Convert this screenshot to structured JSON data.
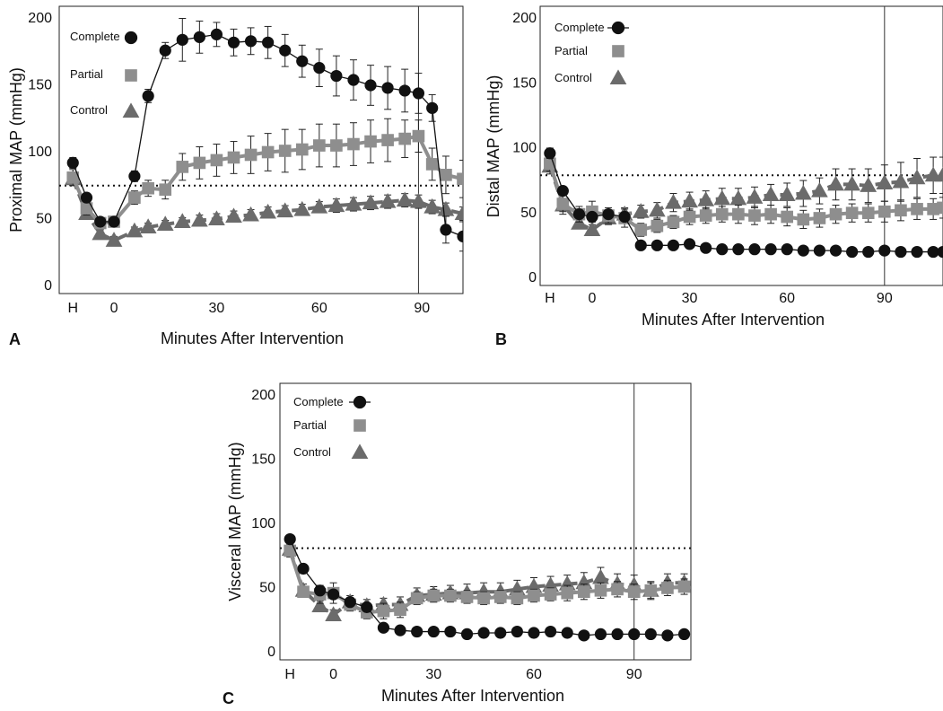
{
  "chart_data": [
    {
      "panel": "A",
      "type": "line",
      "ylabel": "Proximal MAP (mmHg)",
      "xlabel": "Minutes After Intervention",
      "ylim": [
        0,
        200
      ],
      "y_ticks": [
        "0",
        "50",
        "100",
        "150",
        "200"
      ],
      "x_ticks": [
        {
          "label": "H",
          "x": -12
        },
        {
          "label": "0",
          "x": 0
        },
        {
          "label": "30",
          "x": 30
        },
        {
          "label": "60",
          "x": 60
        },
        {
          "label": "90",
          "x": 90
        }
      ],
      "xlim": [
        -16,
        102
      ],
      "vline_x": 89,
      "hline_y": 74,
      "legend": [
        "Complete",
        "Partial",
        "Control"
      ],
      "series": [
        {
          "name": "Complete",
          "color": "#111111",
          "marker": "circle",
          "dash": "solid",
          "x": [
            -12,
            -8,
            -4,
            0,
            6,
            10,
            15,
            20,
            25,
            30,
            35,
            40,
            45,
            50,
            55,
            60,
            65,
            70,
            75,
            80,
            85,
            89,
            93,
            97,
            102
          ],
          "y": [
            91,
            65,
            47,
            47,
            81,
            141,
            175,
            183,
            185,
            187,
            181,
            182,
            181,
            175,
            167,
            162,
            156,
            153,
            149,
            147,
            145,
            143,
            132,
            41,
            36
          ],
          "err": [
            4,
            3,
            3,
            3,
            4,
            5,
            6,
            16,
            12,
            9,
            10,
            10,
            12,
            12,
            12,
            14,
            15,
            15,
            15,
            16,
            16,
            15,
            10,
            10,
            11
          ]
        },
        {
          "name": "Partial",
          "color": "#8e8e8e",
          "marker": "square",
          "dash": "solid",
          "x": [
            -12,
            -8,
            -4,
            0,
            6,
            10,
            15,
            20,
            25,
            30,
            35,
            40,
            45,
            50,
            55,
            60,
            65,
            70,
            75,
            80,
            85,
            89,
            93,
            97,
            102
          ],
          "y": [
            80,
            57,
            46,
            47,
            65,
            72,
            71,
            88,
            91,
            93,
            95,
            97,
            99,
            100,
            101,
            104,
            104,
            105,
            107,
            108,
            109,
            111,
            90,
            82,
            79
          ],
          "err": [
            6,
            5,
            4,
            4,
            5,
            6,
            7,
            10,
            12,
            12,
            12,
            14,
            14,
            16,
            15,
            16,
            16,
            16,
            16,
            16,
            14,
            12,
            12,
            14,
            14
          ]
        },
        {
          "name": "Control",
          "color": "#6b6b6b",
          "marker": "triangle",
          "dash": "dashed",
          "x": [
            -12,
            -8,
            -4,
            0,
            6,
            10,
            15,
            20,
            25,
            30,
            35,
            40,
            45,
            50,
            55,
            60,
            65,
            70,
            75,
            80,
            85,
            89,
            93,
            97,
            102
          ],
          "y": [
            79,
            53,
            38,
            33,
            40,
            43,
            45,
            47,
            48,
            49,
            51,
            52,
            54,
            55,
            56,
            58,
            59,
            60,
            61,
            62,
            63,
            62,
            58,
            56,
            53
          ],
          "err": [
            5,
            4,
            3,
            3,
            3,
            3,
            3,
            3,
            4,
            4,
            4,
            4,
            4,
            4,
            4,
            4,
            5,
            5,
            5,
            5,
            5,
            5,
            5,
            5,
            5
          ]
        }
      ]
    },
    {
      "panel": "B",
      "type": "line",
      "ylabel": "Distal MAP (mmHg)",
      "xlabel": "Minutes After Intervention",
      "ylim": [
        0,
        200
      ],
      "y_ticks": [
        "0",
        "50",
        "100",
        "150",
        "200"
      ],
      "x_ticks": [
        {
          "label": "H",
          "x": -13
        },
        {
          "label": "0",
          "x": 0
        },
        {
          "label": "30",
          "x": 30
        },
        {
          "label": "60",
          "x": 60
        },
        {
          "label": "90",
          "x": 90
        }
      ],
      "xlim": [
        -16,
        108
      ],
      "vline_x": 90,
      "hline_y": 78,
      "legend": [
        "Complete",
        "Partial",
        "Control"
      ],
      "series": [
        {
          "name": "Complete",
          "color": "#111111",
          "marker": "circle",
          "dash": "solid",
          "x": [
            -13,
            -9,
            -4,
            0,
            5,
            10,
            15,
            20,
            25,
            30,
            35,
            40,
            45,
            50,
            55,
            60,
            65,
            70,
            75,
            80,
            85,
            90,
            95,
            100,
            105,
            108
          ],
          "y": [
            95,
            66,
            48,
            46,
            48,
            46,
            24,
            24,
            24,
            25,
            22,
            21,
            21,
            21,
            21,
            21,
            20,
            20,
            20,
            19,
            19,
            20,
            19,
            19,
            19,
            19
          ],
          "err": [
            4,
            3,
            3,
            3,
            3,
            3,
            3,
            2,
            2,
            2,
            2,
            2,
            2,
            2,
            2,
            2,
            2,
            2,
            2,
            2,
            2,
            2,
            2,
            2,
            2,
            2
          ]
        },
        {
          "name": "Partial",
          "color": "#8e8e8e",
          "marker": "square",
          "dash": "solid",
          "x": [
            -13,
            -9,
            -4,
            0,
            5,
            10,
            15,
            20,
            25,
            30,
            35,
            40,
            45,
            50,
            55,
            60,
            65,
            70,
            75,
            80,
            85,
            90,
            95,
            100,
            105,
            108
          ],
          "y": [
            87,
            56,
            48,
            50,
            47,
            45,
            36,
            39,
            42,
            46,
            47,
            48,
            48,
            47,
            48,
            46,
            44,
            45,
            48,
            49,
            49,
            50,
            51,
            52,
            52,
            53
          ],
          "err": [
            6,
            8,
            6,
            8,
            6,
            7,
            5,
            5,
            5,
            6,
            6,
            6,
            7,
            7,
            7,
            7,
            7,
            7,
            7,
            7,
            7,
            8,
            8,
            8,
            8,
            8
          ]
        },
        {
          "name": "Control",
          "color": "#6b6b6b",
          "marker": "triangle",
          "dash": "dashed",
          "x": [
            -13,
            -9,
            -4,
            0,
            5,
            10,
            15,
            20,
            25,
            30,
            35,
            40,
            45,
            50,
            55,
            60,
            65,
            70,
            75,
            80,
            85,
            90,
            95,
            100,
            105,
            108
          ],
          "y": [
            85,
            55,
            41,
            36,
            45,
            48,
            50,
            51,
            57,
            58,
            59,
            60,
            60,
            61,
            63,
            63,
            64,
            66,
            71,
            71,
            70,
            72,
            73,
            76,
            78,
            78
          ],
          "err": [
            6,
            5,
            4,
            4,
            5,
            5,
            5,
            6,
            7,
            7,
            7,
            8,
            8,
            8,
            8,
            9,
            10,
            10,
            12,
            12,
            13,
            14,
            15,
            15,
            14,
            14
          ]
        }
      ]
    },
    {
      "panel": "C",
      "type": "line",
      "ylabel": "Visceral MAP (mmHg)",
      "xlabel": "Minutes After Intervention",
      "ylim": [
        0,
        200
      ],
      "y_ticks": [
        "0",
        "50",
        "100",
        "150",
        "200"
      ],
      "x_ticks": [
        {
          "label": "H",
          "x": -13
        },
        {
          "label": "0",
          "x": 0
        },
        {
          "label": "30",
          "x": 30
        },
        {
          "label": "60",
          "x": 60
        },
        {
          "label": "90",
          "x": 90
        }
      ],
      "xlim": [
        -16,
        107
      ],
      "vline_x": 90,
      "hline_y": 80,
      "legend": [
        "Complete",
        "Partial",
        "Control"
      ],
      "series": [
        {
          "name": "Complete",
          "color": "#111111",
          "marker": "circle",
          "dash": "solid",
          "x": [
            -13,
            -9,
            -4,
            0,
            5,
            10,
            15,
            20,
            25,
            30,
            35,
            40,
            45,
            50,
            55,
            60,
            65,
            70,
            75,
            80,
            85,
            90,
            95,
            100,
            105
          ],
          "y": [
            87,
            64,
            47,
            44,
            38,
            34,
            18,
            16,
            15,
            15,
            15,
            13,
            14,
            14,
            15,
            14,
            15,
            14,
            12,
            13,
            13,
            13,
            13,
            12,
            13
          ],
          "err": [
            3,
            3,
            3,
            3,
            3,
            3,
            2,
            2,
            2,
            2,
            2,
            2,
            2,
            2,
            2,
            2,
            2,
            2,
            2,
            2,
            2,
            2,
            2,
            2,
            2
          ]
        },
        {
          "name": "Partial",
          "color": "#8e8e8e",
          "marker": "square",
          "dash": "solid",
          "x": [
            -13,
            -9,
            -4,
            0,
            5,
            10,
            15,
            20,
            25,
            30,
            35,
            40,
            45,
            50,
            55,
            60,
            65,
            70,
            75,
            80,
            85,
            90,
            95,
            100,
            105
          ],
          "y": [
            78,
            46,
            44,
            45,
            36,
            30,
            31,
            32,
            41,
            43,
            43,
            42,
            41,
            42,
            41,
            43,
            44,
            45,
            46,
            47,
            48,
            46,
            47,
            49,
            50
          ],
          "err": [
            5,
            4,
            7,
            8,
            5,
            5,
            6,
            6,
            5,
            5,
            5,
            5,
            5,
            5,
            5,
            5,
            5,
            6,
            6,
            6,
            6,
            6,
            6,
            6,
            6
          ]
        },
        {
          "name": "Control",
          "color": "#6b6b6b",
          "marker": "triangle",
          "dash": "dashed",
          "x": [
            -13,
            -9,
            -4,
            0,
            5,
            10,
            15,
            20,
            25,
            30,
            35,
            40,
            45,
            50,
            55,
            60,
            65,
            70,
            75,
            80,
            85,
            90,
            95,
            100,
            105
          ],
          "y": [
            79,
            47,
            35,
            28,
            38,
            35,
            36,
            36,
            43,
            44,
            45,
            45,
            46,
            46,
            48,
            50,
            51,
            52,
            53,
            57,
            52,
            51,
            47,
            53,
            53
          ],
          "err": [
            5,
            5,
            4,
            4,
            5,
            5,
            5,
            6,
            6,
            6,
            6,
            7,
            7,
            7,
            7,
            7,
            7,
            7,
            8,
            8,
            8,
            8,
            7,
            7,
            7
          ]
        }
      ]
    }
  ],
  "panels": [
    {
      "letter": "A"
    },
    {
      "letter": "B"
    },
    {
      "letter": "C"
    }
  ]
}
